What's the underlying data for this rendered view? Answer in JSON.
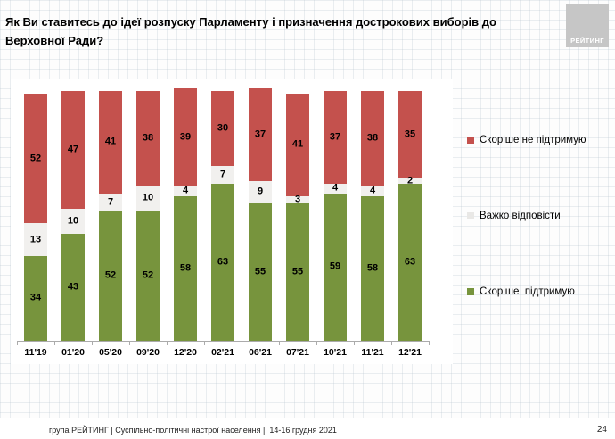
{
  "slide": {
    "title_line1": "Як Ви ставитесь до ідеї розпуску Парламенту і призначення дострокових виборів до",
    "title_line2": "Верховної Ради?",
    "logo_text": "РЕЙТИНГ",
    "footer_text": "група РЕЙТИНГ | Суспільно-політичні настрої населення |  14-16 грудня 2021",
    "page_number": "24"
  },
  "colors": {
    "not_support": "#c4514d",
    "hard_to_say": "#f1f0ee",
    "support": "#77943d",
    "axis": "#ababab",
    "logo_bg": "#c6c6c6"
  },
  "chart_data": {
    "type": "bar",
    "stacked": true,
    "orientation": "vertical",
    "unit": "percent",
    "ylim": [
      0,
      100
    ],
    "grid": false,
    "legend_position": "right",
    "categories": [
      "11'19",
      "01'20",
      "05'20",
      "09'20",
      "12'20",
      "02'21",
      "06'21",
      "07'21",
      "10'21",
      "11'21",
      "12'21"
    ],
    "series": [
      {
        "name": "Скоріше не підтримую",
        "color_key": "not_support",
        "values": [
          52,
          47,
          41,
          38,
          39,
          30,
          37,
          41,
          37,
          38,
          35
        ]
      },
      {
        "name": "Важко відповісти",
        "color_key": "hard_to_say",
        "values": [
          13,
          10,
          7,
          10,
          4,
          7,
          9,
          3,
          4,
          4,
          2
        ]
      },
      {
        "name": "Скоріше  підтримую",
        "color_key": "support",
        "values": [
          34,
          43,
          52,
          52,
          58,
          63,
          55,
          55,
          59,
          58,
          63
        ]
      }
    ]
  }
}
